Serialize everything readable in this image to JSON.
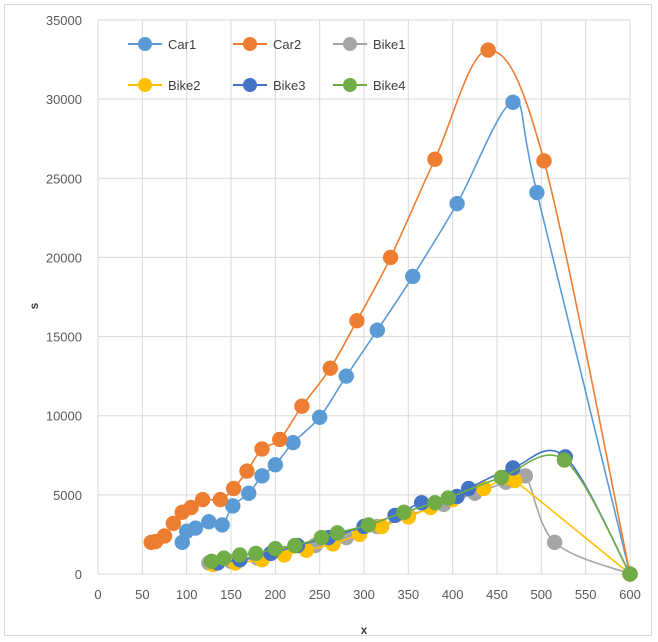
{
  "chart_data": {
    "type": "scatter",
    "title": "",
    "xlabel": "x",
    "ylabel": "s",
    "xlim": [
      0,
      600
    ],
    "ylim": [
      0,
      35000
    ],
    "xticks": [
      0,
      50,
      100,
      150,
      200,
      250,
      300,
      350,
      400,
      450,
      500,
      550,
      600
    ],
    "yticks": [
      0,
      5000,
      10000,
      15000,
      20000,
      25000,
      30000,
      35000
    ],
    "grid": true,
    "legend_position": "top-left",
    "series": [
      {
        "name": "Car1",
        "color": "#5b9bd5",
        "points": [
          [
            95,
            2000
          ],
          [
            100,
            2700
          ],
          [
            110,
            2900
          ],
          [
            125,
            3300
          ],
          [
            140,
            3100
          ],
          [
            152,
            4300
          ],
          [
            170,
            5100
          ],
          [
            185,
            6200
          ],
          [
            200,
            6900
          ],
          [
            220,
            8300
          ],
          [
            250,
            9900
          ],
          [
            280,
            12500
          ],
          [
            315,
            15400
          ],
          [
            355,
            18800
          ],
          [
            405,
            23400
          ],
          [
            468,
            29800
          ],
          [
            495,
            24100
          ],
          [
            600,
            0
          ]
        ]
      },
      {
        "name": "Car2",
        "color": "#ed7d31",
        "points": [
          [
            60,
            2000
          ],
          [
            65,
            2050
          ],
          [
            75,
            2400
          ],
          [
            85,
            3200
          ],
          [
            95,
            3900
          ],
          [
            105,
            4200
          ],
          [
            118,
            4700
          ],
          [
            138,
            4700
          ],
          [
            153,
            5400
          ],
          [
            168,
            6500
          ],
          [
            185,
            7900
          ],
          [
            205,
            8500
          ],
          [
            230,
            10600
          ],
          [
            262,
            13000
          ],
          [
            292,
            16000
          ],
          [
            330,
            20000
          ],
          [
            380,
            26200
          ],
          [
            440,
            33100
          ],
          [
            503,
            26100
          ],
          [
            600,
            0
          ]
        ]
      },
      {
        "name": "Bike1",
        "color": "#a5a5a5",
        "points": [
          [
            125,
            700
          ],
          [
            150,
            800
          ],
          [
            180,
            1000
          ],
          [
            210,
            1300
          ],
          [
            245,
            1800
          ],
          [
            280,
            2300
          ],
          [
            315,
            3000
          ],
          [
            350,
            3700
          ],
          [
            390,
            4400
          ],
          [
            425,
            5100
          ],
          [
            460,
            5800
          ],
          [
            482,
            6200
          ],
          [
            515,
            2000
          ],
          [
            600,
            0
          ]
        ]
      },
      {
        "name": "Bike2",
        "color": "#ffc000",
        "points": [
          [
            130,
            600
          ],
          [
            155,
            700
          ],
          [
            185,
            900
          ],
          [
            210,
            1200
          ],
          [
            235,
            1500
          ],
          [
            265,
            1900
          ],
          [
            295,
            2500
          ],
          [
            320,
            3000
          ],
          [
            350,
            3600
          ],
          [
            375,
            4200
          ],
          [
            400,
            4700
          ],
          [
            435,
            5400
          ],
          [
            460,
            6100
          ],
          [
            470,
            5900
          ],
          [
            600,
            0
          ]
        ]
      },
      {
        "name": "Bike3",
        "color": "#4472c4",
        "points": [
          [
            135,
            700
          ],
          [
            160,
            900
          ],
          [
            195,
            1300
          ],
          [
            225,
            1800
          ],
          [
            260,
            2300
          ],
          [
            300,
            3000
          ],
          [
            335,
            3700
          ],
          [
            365,
            4500
          ],
          [
            405,
            4900
          ],
          [
            418,
            5400
          ],
          [
            468,
            6700
          ],
          [
            527,
            7400
          ],
          [
            600,
            0
          ]
        ]
      },
      {
        "name": "Bike4",
        "color": "#70ad47",
        "points": [
          [
            128,
            800
          ],
          [
            142,
            1000
          ],
          [
            160,
            1200
          ],
          [
            178,
            1300
          ],
          [
            200,
            1600
          ],
          [
            222,
            1800
          ],
          [
            252,
            2300
          ],
          [
            270,
            2600
          ],
          [
            305,
            3100
          ],
          [
            345,
            3900
          ],
          [
            380,
            4500
          ],
          [
            395,
            4800
          ],
          [
            455,
            6100
          ],
          [
            526,
            7200
          ],
          [
            600,
            0
          ]
        ]
      }
    ]
  }
}
